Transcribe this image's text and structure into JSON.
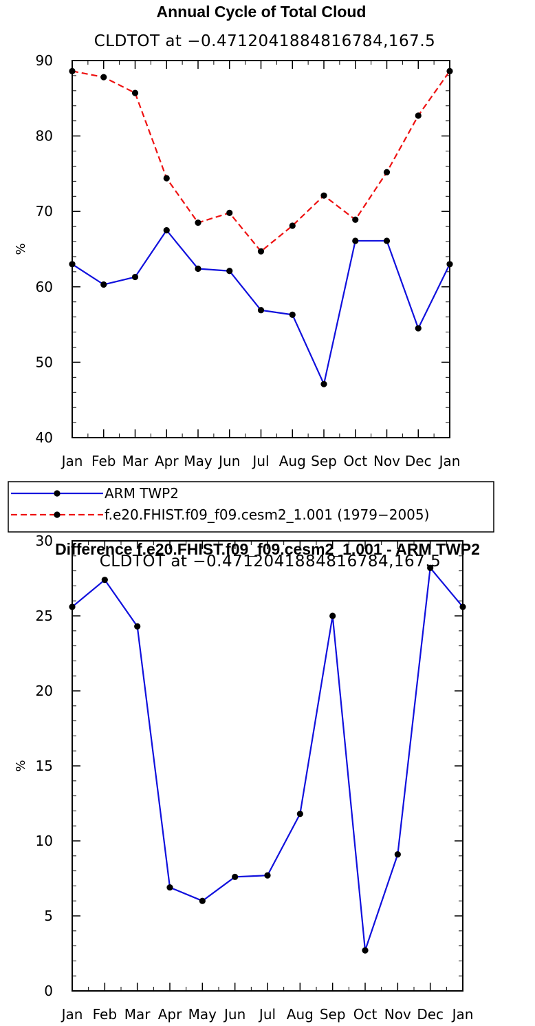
{
  "chart_data": [
    {
      "type": "line",
      "title": "Annual Cycle of Total Cloud",
      "subtitle": "CLDTOT at −0.4712041884816784,167.5",
      "ylabel": "%",
      "ylim": [
        40,
        90
      ],
      "yticks": [
        "40",
        "50",
        "60",
        "70",
        "80",
        "90"
      ],
      "ytick_values": [
        40,
        50,
        60,
        70,
        80,
        90
      ],
      "categories": [
        "Jan",
        "Feb",
        "Mar",
        "Apr",
        "May",
        "Jun",
        "Jul",
        "Aug",
        "Sep",
        "Oct",
        "Nov",
        "Dec",
        "Jan"
      ],
      "series": [
        {
          "name": "ARM TWP2",
          "color": "#1010dd",
          "style": "solid",
          "values": [
            63.0,
            60.3,
            61.3,
            67.5,
            62.4,
            62.1,
            56.9,
            56.3,
            47.1,
            66.1,
            66.1,
            54.5,
            63.0
          ]
        },
        {
          "name": "f.e20.FHIST.f09_f09.cesm2_1.001 (1979−2005)",
          "color": "#ee1111",
          "style": "dashed",
          "values": [
            88.6,
            87.8,
            85.7,
            74.4,
            68.5,
            69.8,
            64.7,
            68.1,
            72.1,
            68.9,
            75.2,
            82.7,
            88.6
          ]
        }
      ]
    },
    {
      "type": "line",
      "title": "Difference f.e20.FHIST.f09_f09.cesm2_1.001 - ARM TWP2",
      "subtitle": "CLDTOT at −0.4712041884816784,167.5",
      "ylabel": "%",
      "ylim": [
        0,
        30
      ],
      "yticks": [
        "0",
        "5",
        "10",
        "15",
        "20",
        "25",
        "30"
      ],
      "ytick_values": [
        0,
        5,
        10,
        15,
        20,
        25,
        30
      ],
      "categories": [
        "Jan",
        "Feb",
        "Mar",
        "Apr",
        "May",
        "Jun",
        "Jul",
        "Aug",
        "Sep",
        "Oct",
        "Nov",
        "Dec",
        "Jan"
      ],
      "series": [
        {
          "name": "Difference",
          "color": "#1010dd",
          "style": "solid",
          "values": [
            25.6,
            27.4,
            24.3,
            6.9,
            6.0,
            7.6,
            7.7,
            11.8,
            25.0,
            2.7,
            9.1,
            28.2,
            25.6
          ]
        }
      ]
    }
  ]
}
